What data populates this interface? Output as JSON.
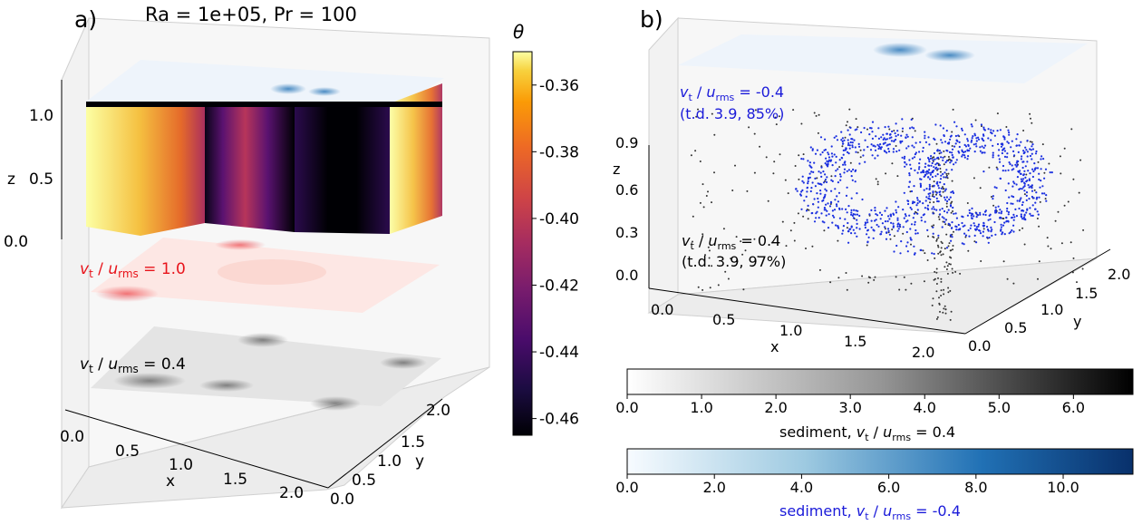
{
  "figure": {
    "panel_a_label": "a)",
    "panel_b_label": "b)",
    "title": "Ra = 1e+05, Pr = 100"
  },
  "colors": {
    "sediment_up": "#e8141b",
    "sediment_down_text": "#1a1ad9",
    "sediment_down_points": "#1a2fe0",
    "sediment_black": "#000000"
  },
  "chart_data": [
    {
      "type": "heatmap",
      "panel": "a",
      "description_kind": "3d volume of temperature with sediment density layers",
      "xlabel": "x",
      "ylabel": "y",
      "zlabel": "z",
      "x_ticks": [
        "0.0",
        "0.5",
        "1.0",
        "1.5",
        "2.0"
      ],
      "y_ticks": [
        "0.0",
        "0.5",
        "1.0",
        "1.5",
        "2.0"
      ],
      "z_ticks": [
        "0.0",
        "0.5",
        "1.0"
      ],
      "xlim": [
        0,
        2
      ],
      "ylim": [
        0,
        2
      ],
      "zlim": [
        0,
        1
      ],
      "colorbar": {
        "label": "θ",
        "colormap": "inferno",
        "range": [
          -0.465,
          -0.35
        ],
        "ticks": [
          "-0.36",
          "-0.38",
          "-0.40",
          "-0.42",
          "-0.44",
          "-0.46"
        ],
        "tick_values": [
          -0.36,
          -0.38,
          -0.4,
          -0.42,
          -0.44,
          -0.46
        ]
      },
      "layers": [
        {
          "label_prefix": "v",
          "label_sub": "t",
          "label_mid": " / ",
          "label_u": "u",
          "label_usub": "rms",
          "label_value": " =  1.0",
          "color": "#e8141b"
        },
        {
          "label_prefix": "v",
          "label_sub": "t",
          "label_mid": " / ",
          "label_u": "u",
          "label_usub": "rms",
          "label_value": " =  0.4",
          "color": "#000000"
        }
      ]
    },
    {
      "type": "scatter",
      "panel": "b",
      "xlabel": "x",
      "ylabel": "y",
      "zlabel": "z",
      "x_ticks": [
        "0.0",
        "0.5",
        "1.0",
        "1.5",
        "2.0"
      ],
      "y_ticks": [
        "0.0",
        "0.5",
        "1.0",
        "1.5",
        "2.0"
      ],
      "z_ticks": [
        "0.0",
        "0.3",
        "0.6",
        "0.9"
      ],
      "xlim": [
        0,
        2
      ],
      "ylim": [
        0,
        2
      ],
      "zlim": [
        0,
        1
      ],
      "series": [
        {
          "label_prefix": "v",
          "label_sub": "t",
          "label_mid": " / ",
          "label_u": "u",
          "label_usub": "rms",
          "label_value": " =  -0.4",
          "note": "(t.d. 3.9, 85%)",
          "color": "#1a1ad9"
        },
        {
          "label_prefix": "v",
          "label_sub": "t",
          "label_mid": " / ",
          "label_u": "u",
          "label_usub": "rms",
          "label_value": " =  0.4",
          "note": "(t.d. 3.9, 97%)",
          "color": "#000000"
        }
      ],
      "colorbars": [
        {
          "label_text": "sediment, ",
          "label_value": " =  0.4",
          "colormap": "Greys",
          "range": [
            0,
            6.8
          ],
          "ticks": [
            "0.0",
            "1.0",
            "2.0",
            "3.0",
            "4.0",
            "5.0",
            "6.0"
          ],
          "tick_values": [
            0,
            1,
            2,
            3,
            4,
            5,
            6
          ],
          "color": "#000000"
        },
        {
          "label_text": "sediment, ",
          "label_value": " =  -0.4",
          "colormap": "Blues",
          "range": [
            0,
            11.6
          ],
          "ticks": [
            "0.0",
            "2.0",
            "4.0",
            "6.0",
            "8.0",
            "10.0"
          ],
          "tick_values": [
            0,
            2,
            4,
            6,
            8,
            10
          ],
          "color": "#1a1ad9"
        }
      ]
    }
  ]
}
